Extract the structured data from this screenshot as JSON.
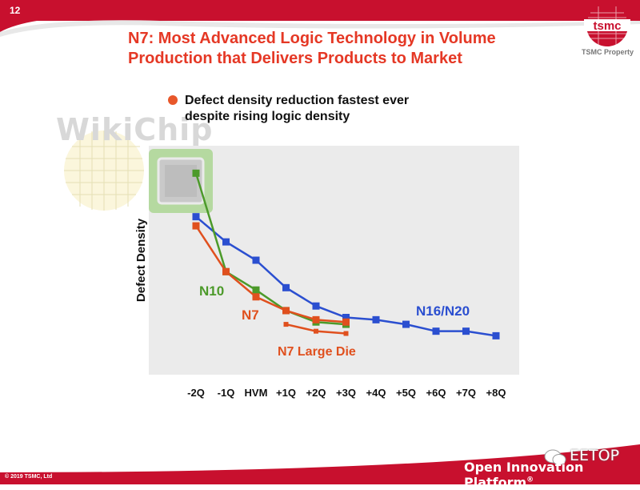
{
  "slide": {
    "page_number": "12",
    "title_line1": "N7: Most Advanced Logic Technology in Volume",
    "title_line2": "Production that Delivers Products to Market",
    "property_label": "TSMC Property",
    "logo_text": "tsmc",
    "bullet_line1": "Defect density reduction fastest ever",
    "bullet_line2": "despite rising logic density",
    "watermark": "WikiChip",
    "footer_brand": "Open Innovation Platform",
    "footer_reg": "®",
    "eetop_label": "EETOP",
    "copyright": "© 2019 TSMC, Ltd",
    "colors": {
      "brand_red": "#c8102e",
      "title_red": "#e53825",
      "n7": "#e0501e",
      "n10": "#4c9a2a",
      "n16": "#2b4fd0",
      "plot_bg": "#ebebeb"
    }
  },
  "chart_data": {
    "type": "line",
    "ylabel": "Defect Density",
    "xlabel": "",
    "categories": [
      "-2Q",
      "-1Q",
      "HVM",
      "+1Q",
      "+2Q",
      "+3Q",
      "+4Q",
      "+5Q",
      "+6Q",
      "+7Q",
      "+8Q"
    ],
    "ylim": [
      0,
      1
    ],
    "grid": false,
    "legend": "inline labels",
    "series": [
      {
        "name": "N16/N20",
        "color": "#2b4fd0",
        "x": [
          0,
          1,
          2,
          3,
          4,
          5,
          6,
          7,
          8,
          9,
          10
        ],
        "values": [
          0.69,
          0.58,
          0.5,
          0.38,
          0.3,
          0.25,
          0.24,
          0.22,
          0.19,
          0.19,
          0.17
        ]
      },
      {
        "name": "N10",
        "color": "#4c9a2a",
        "x": [
          0,
          1,
          2,
          3,
          4,
          5
        ],
        "values": [
          0.88,
          0.45,
          0.37,
          0.28,
          0.23,
          0.22
        ]
      },
      {
        "name": "N7",
        "color": "#e0501e",
        "x": [
          0,
          1,
          2,
          3,
          4,
          5
        ],
        "values": [
          0.65,
          0.45,
          0.34,
          0.28,
          0.24,
          0.23
        ]
      },
      {
        "name": "N7 Large Die",
        "color": "#e0501e",
        "x": [
          3,
          4,
          5
        ],
        "values": [
          0.22,
          0.19,
          0.18
        ]
      }
    ]
  }
}
